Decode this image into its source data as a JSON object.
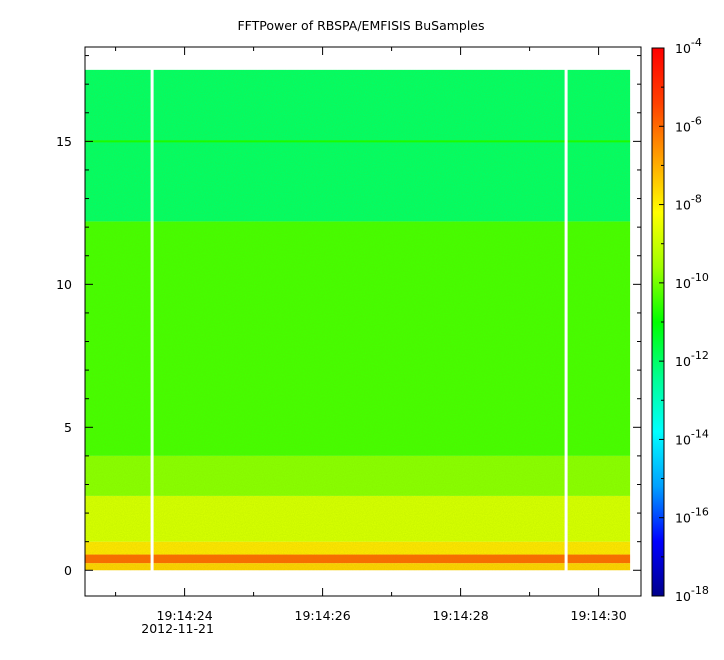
{
  "chart_data": {
    "type": "heatmap",
    "title": "FFTPower of RBSPA/EMFISIS  BuSamples",
    "xlabel": "",
    "ylabel": "",
    "x_range_seconds": [
      "19:14:22.6",
      "19:14:30.5"
    ],
    "x_ticks": [
      {
        "label": "19:14:24",
        "sublabel": "2012-11-21",
        "t": 24
      },
      {
        "label": "19:14:26",
        "sublabel": "",
        "t": 26
      },
      {
        "label": "19:14:28",
        "sublabel": "",
        "t": 28
      },
      {
        "label": "19:14:30",
        "sublabel": "",
        "t": 30
      }
    ],
    "x_minor_ticks": [
      23,
      25,
      27,
      29
    ],
    "ylim": [
      -0.9,
      18.3
    ],
    "y_ticks": [
      0,
      5,
      10,
      15
    ],
    "colorbar": {
      "scale": "log",
      "range": [
        "1e-18",
        "1e-4"
      ],
      "tick_labels": [
        {
          "mantissa": "10",
          "exp": "-4",
          "log": -4
        },
        {
          "mantissa": "10",
          "exp": "-6",
          "log": -6
        },
        {
          "mantissa": "10",
          "exp": "-8",
          "log": -8
        },
        {
          "mantissa": "10",
          "exp": "-10",
          "log": -10
        },
        {
          "mantissa": "10",
          "exp": "-12",
          "log": -12
        },
        {
          "mantissa": "10",
          "exp": "-14",
          "log": -14
        },
        {
          "mantissa": "10",
          "exp": "-16",
          "log": -16
        },
        {
          "mantissa": "10",
          "exp": "-18",
          "log": -18
        }
      ],
      "colors": [
        "#00008b",
        "#0000ff",
        "#00a0ff",
        "#00ffff",
        "#00ff90",
        "#00ff00",
        "#a0ff00",
        "#ffff00",
        "#ffa000",
        "#ff4000",
        "#ff0000"
      ]
    },
    "data_extent": {
      "t_start": 22.6,
      "t_end": 30.5,
      "f_min": 0,
      "f_max": 17.5
    },
    "gaps_t": [
      23.5,
      29.5
    ],
    "spectrum_bands": [
      {
        "f_from": 0.0,
        "f_to": 0.25,
        "log_power": -7.5
      },
      {
        "f_from": 0.25,
        "f_to": 0.55,
        "log_power": -6.0
      },
      {
        "f_from": 0.55,
        "f_to": 1.0,
        "log_power": -7.8
      },
      {
        "f_from": 1.0,
        "f_to": 2.6,
        "log_power": -8.8
      },
      {
        "f_from": 2.6,
        "f_to": 4.0,
        "log_power": -9.8
      },
      {
        "f_from": 4.0,
        "f_to": 12.2,
        "log_power": -10.4
      },
      {
        "f_from": 12.2,
        "f_to": 17.5,
        "log_power": -12.0
      }
    ],
    "line_features": [
      {
        "f": 15.0,
        "log_power": -10.8
      }
    ]
  }
}
